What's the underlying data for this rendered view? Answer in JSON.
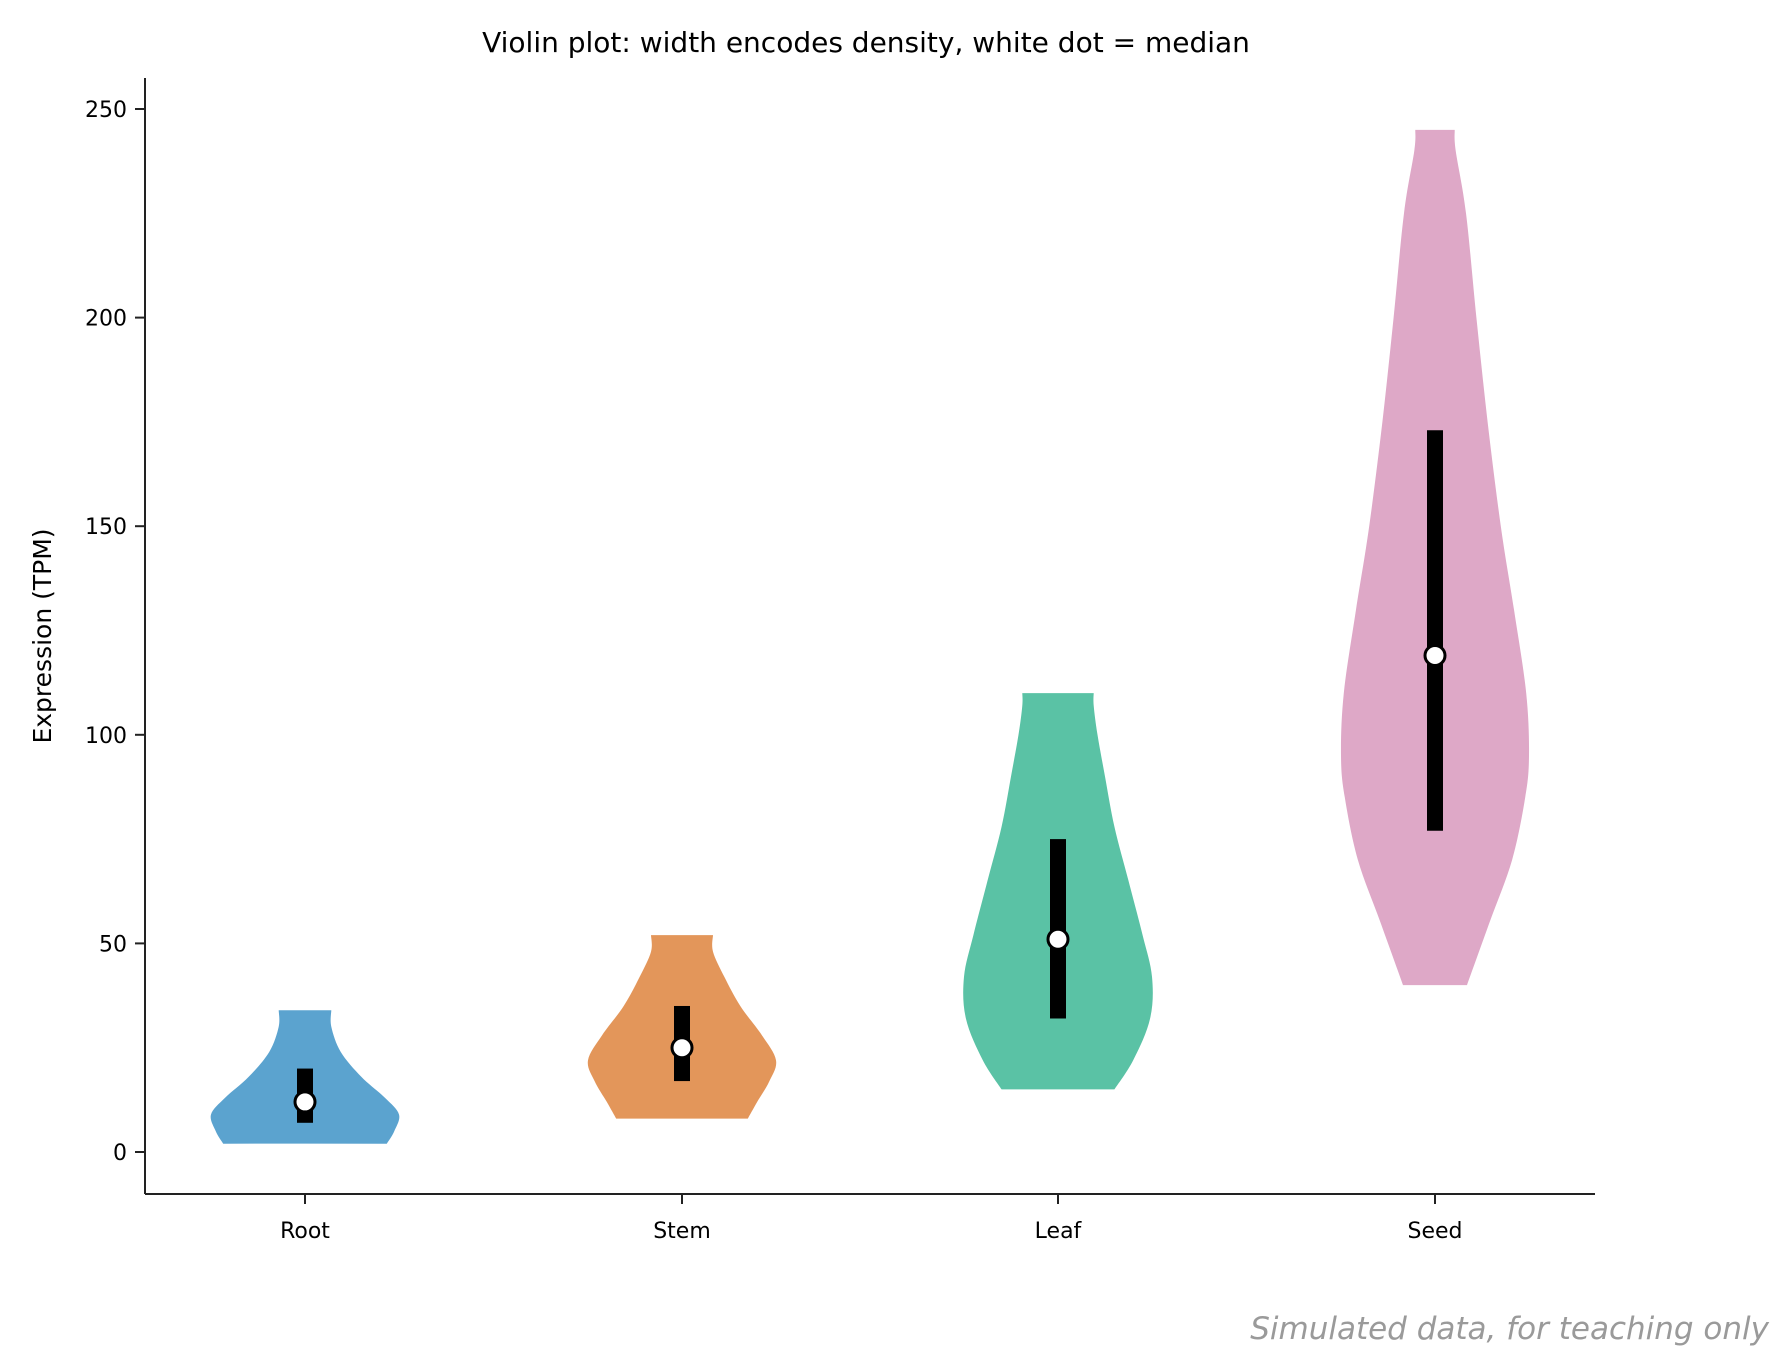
{
  "chart_data": {
    "type": "violin",
    "title": "Violin plot: width encodes density, white dot = median",
    "ylabel": "Expression (TPM)",
    "xlabel": "",
    "ylim": [
      -10,
      257
    ],
    "yticks": [
      0,
      50,
      100,
      150,
      200,
      250
    ],
    "grid": false,
    "categories": [
      "Root",
      "Stem",
      "Leaf",
      "Seed"
    ],
    "series": [
      {
        "category": "Root",
        "color": "#5ba3cf",
        "min": 2,
        "max": 34,
        "q1": 7,
        "median": 12,
        "q3": 20,
        "density": [
          [
            2,
            0.87
          ],
          [
            5,
            0.95
          ],
          [
            9,
            1.0
          ],
          [
            13,
            0.85
          ],
          [
            18,
            0.6
          ],
          [
            24,
            0.38
          ],
          [
            30,
            0.28
          ],
          [
            34,
            0.28
          ]
        ]
      },
      {
        "category": "Stem",
        "color": "#e3965a",
        "min": 8,
        "max": 52,
        "q1": 17,
        "median": 25,
        "q3": 35,
        "density": [
          [
            8,
            0.7
          ],
          [
            12,
            0.8
          ],
          [
            17,
            0.93
          ],
          [
            22,
            1.0
          ],
          [
            28,
            0.85
          ],
          [
            35,
            0.62
          ],
          [
            42,
            0.45
          ],
          [
            48,
            0.33
          ],
          [
            52,
            0.33
          ]
        ]
      },
      {
        "category": "Leaf",
        "color": "#5ac2a5",
        "min": 15,
        "max": 110,
        "q1": 32,
        "median": 51,
        "q3": 75,
        "density": [
          [
            15,
            0.6
          ],
          [
            22,
            0.8
          ],
          [
            32,
            0.98
          ],
          [
            42,
            1.0
          ],
          [
            52,
            0.9
          ],
          [
            65,
            0.75
          ],
          [
            78,
            0.6
          ],
          [
            90,
            0.5
          ],
          [
            100,
            0.42
          ],
          [
            107,
            0.38
          ],
          [
            110,
            0.38
          ]
        ]
      },
      {
        "category": "Seed",
        "color": "#dea8c7",
        "min": 40,
        "max": 245,
        "q1": 77,
        "median": 119,
        "q3": 173,
        "density": [
          [
            40,
            0.34
          ],
          [
            55,
            0.58
          ],
          [
            70,
            0.82
          ],
          [
            85,
            0.96
          ],
          [
            95,
            1.0
          ],
          [
            110,
            0.97
          ],
          [
            130,
            0.84
          ],
          [
            150,
            0.7
          ],
          [
            175,
            0.56
          ],
          [
            200,
            0.44
          ],
          [
            225,
            0.33
          ],
          [
            240,
            0.22
          ],
          [
            245,
            0.21
          ]
        ]
      }
    ]
  },
  "footnote": "Simulated data, for teaching only"
}
